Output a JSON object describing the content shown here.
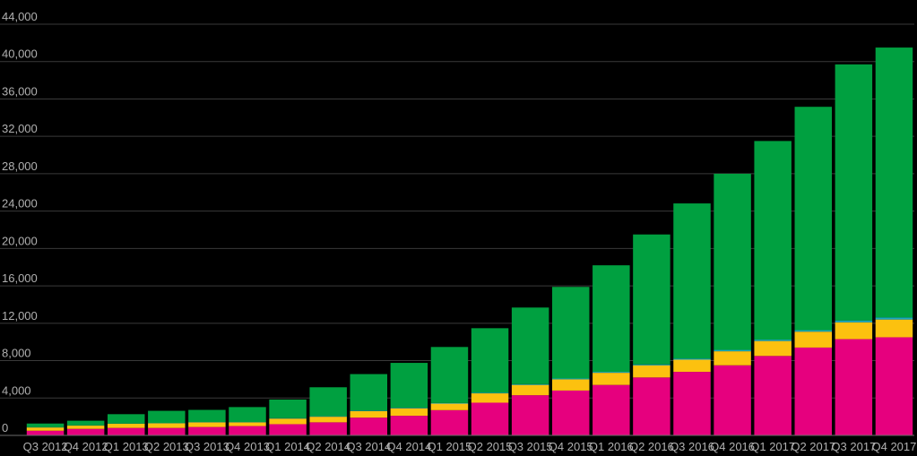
{
  "chart_data": {
    "type": "bar",
    "stacked": true,
    "title": "",
    "xlabel": "",
    "ylabel": "",
    "ylim": [
      0,
      44000
    ],
    "yticks": [
      0,
      4000,
      8000,
      12000,
      16000,
      20000,
      24000,
      28000,
      32000,
      36000,
      40000,
      44000
    ],
    "ytick_labels": [
      "0",
      "4,000",
      "8,000",
      "12,000",
      "16,000",
      "20,000",
      "24,000",
      "28,000",
      "32,000",
      "36,000",
      "40,000",
      "44,000"
    ],
    "grid": true,
    "legend": "none",
    "categories": [
      "Q3 2012",
      "Q4 2012",
      "Q1 2013",
      "Q2 2013",
      "Q3 2013",
      "Q4 2013",
      "Q1 2014",
      "Q2 2014",
      "Q3 2014",
      "Q4 2014",
      "Q1 2015",
      "Q2 2015",
      "Q3 2015",
      "Q4 2015",
      "Q1 2016",
      "Q2 2016",
      "Q3 2016",
      "Q4 2016",
      "Q1 2017",
      "Q2 2017",
      "Q3 2017",
      "Q4 2017"
    ],
    "series": [
      {
        "color": "#e6007e",
        "values": [
          500,
          700,
          800,
          800,
          900,
          1000,
          1200,
          1400,
          1900,
          2100,
          2700,
          3500,
          4300,
          4800,
          5400,
          6200,
          6800,
          7500,
          8500,
          9400,
          10300,
          10500
        ]
      },
      {
        "color": "#fcc10f",
        "values": [
          350,
          350,
          450,
          500,
          500,
          400,
          600,
          600,
          700,
          800,
          700,
          1000,
          1100,
          1200,
          1300,
          1300,
          1300,
          1500,
          1600,
          1700,
          1800,
          1900
        ]
      },
      {
        "color": "#1aa9c0",
        "values": [
          20,
          20,
          20,
          30,
          30,
          30,
          40,
          50,
          60,
          60,
          60,
          70,
          80,
          90,
          100,
          100,
          120,
          150,
          150,
          160,
          200,
          220
        ]
      },
      {
        "color": "#00a040",
        "values": [
          400,
          500,
          1000,
          1300,
          1300,
          1600,
          2000,
          3100,
          3900,
          4800,
          6000,
          6900,
          8200,
          9800,
          11400,
          13900,
          16600,
          18850,
          21250,
          23900,
          27400,
          28880
        ]
      }
    ]
  }
}
